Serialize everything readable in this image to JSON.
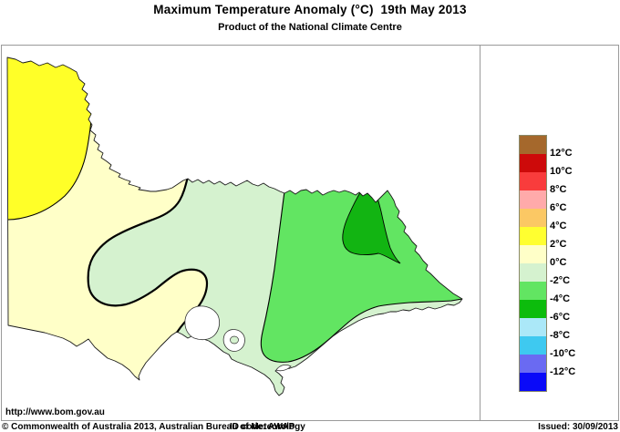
{
  "header": {
    "title": "Maximum Temperature Anomaly (°C)  19th May 2013",
    "subtitle": "Product of the National Climate Centre"
  },
  "map": {
    "url_label": "http://www.bom.gov.au",
    "outline_color": "#1a1a1a",
    "contour_color": "#000000",
    "sea_color": "#ffffff",
    "regions": [
      {
        "id": "anomaly-0-to-2",
        "label": "0 to +2°C",
        "color": "#ffffc8"
      },
      {
        "id": "anomaly-2-to-4",
        "label": "+2 to +4°C",
        "color": "#ffff28"
      },
      {
        "id": "anomaly-0-to-m2",
        "label": "0 to -2°C",
        "color": "#d5f2cf"
      },
      {
        "id": "anomaly-m2-to-m4",
        "label": "-2 to -4°C",
        "color": "#62e562"
      },
      {
        "id": "anomaly-m4-to-m6",
        "label": "-4 to -6°C",
        "color": "#12b412"
      }
    ]
  },
  "legend": {
    "swatches": [
      {
        "label": "above 12°C",
        "color": "#a5682c"
      },
      {
        "label": "10 to 12°C",
        "color": "#cd0a0a"
      },
      {
        "label": "8 to 10°C",
        "color": "#f93c3c"
      },
      {
        "label": "6 to 8°C",
        "color": "#ffaaaa"
      },
      {
        "label": "4 to 6°C",
        "color": "#fbc864"
      },
      {
        "label": "2 to 4°C",
        "color": "#ffff30"
      },
      {
        "label": "0 to 2°C",
        "color": "#ffffc8"
      },
      {
        "label": "0 to -2°C",
        "color": "#d5f2cf"
      },
      {
        "label": "-2 to -4°C",
        "color": "#62e562"
      },
      {
        "label": "-4 to -6°C",
        "color": "#0cbc0c"
      },
      {
        "label": "-6 to -8°C",
        "color": "#abe8f8"
      },
      {
        "label": "-8 to -10°C",
        "color": "#3ec9f0"
      },
      {
        "label": "-10 to -12°C",
        "color": "#6a6af2"
      },
      {
        "label": "below -12°C",
        "color": "#0a0af8"
      }
    ],
    "tick_labels": [
      "12°C",
      "10°C",
      "8°C",
      "6°C",
      "4°C",
      "2°C",
      "0°C",
      "-2°C",
      "-4°C",
      "-6°C",
      "-8°C",
      "-10°C",
      "-12°C"
    ]
  },
  "footer": {
    "copyright": "© Commonwealth of Australia 2013, Australian Bureau of Meteorology",
    "id_code": "ID code: AWAP",
    "issued": "Issued: 30/09/2013"
  }
}
